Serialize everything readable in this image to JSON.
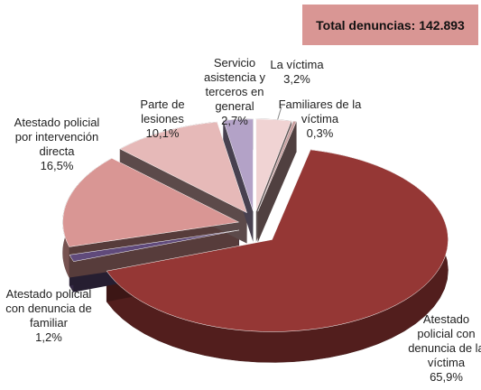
{
  "chart_data": {
    "type": "pie3d",
    "annotation": "Total denuncias: 142.893",
    "categories": [
      "La víctima",
      "Familiares de la víctima",
      "Atestado policial con denuncia de la víctima",
      "Atestado policial con denuncia de familiar",
      "Atestado policial por intervención directa",
      "Parte de lesiones",
      "Servicio asistencia y terceros en general"
    ],
    "values": [
      3.2,
      0.3,
      65.9,
      1.2,
      16.5,
      10.1,
      2.7
    ],
    "value_labels": [
      "3,2%",
      "0,3%",
      "65,9%",
      "1,2%",
      "16,5%",
      "10,1%",
      "2,7%"
    ],
    "colors": [
      "#f0d3d3",
      "#c9a0a0",
      "#953735",
      "#604a7b",
      "#d99694",
      "#e6b9b8",
      "#b3a2c7"
    ]
  }
}
